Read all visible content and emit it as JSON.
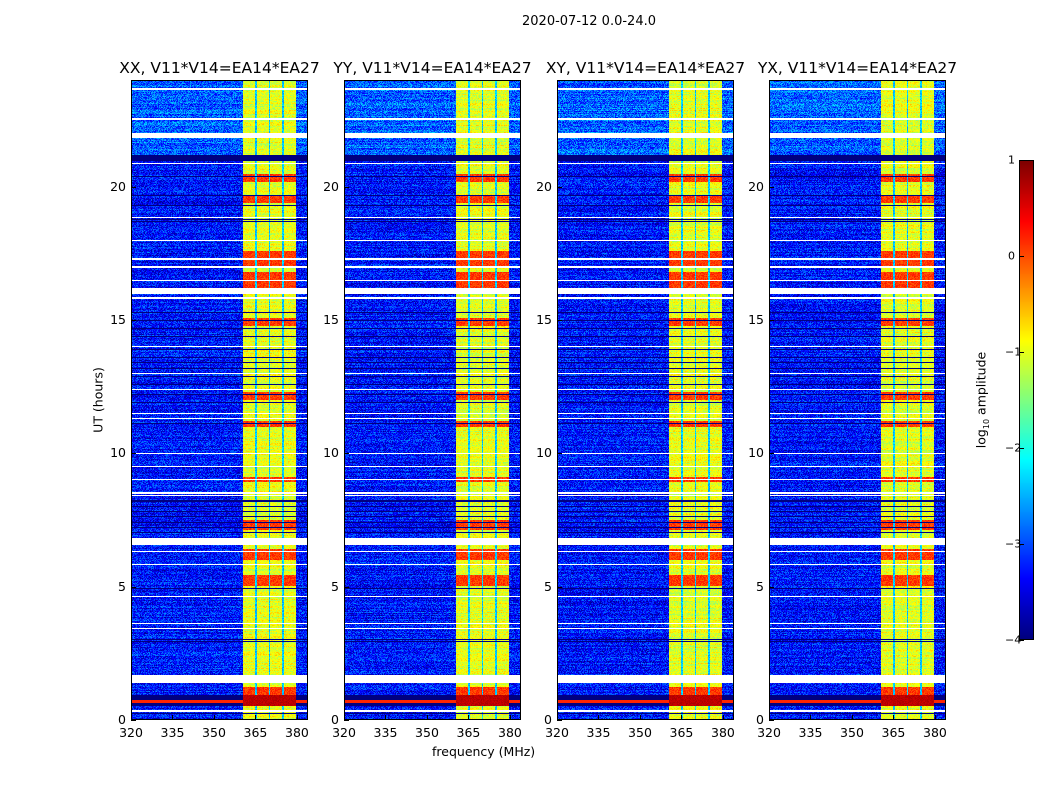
{
  "chart_data": {
    "type": "heatmap",
    "suptitle": "2020-07-12 0.0-24.0",
    "panels": [
      {
        "title": "XX, V11*V14=EA14*EA27",
        "seed": 11
      },
      {
        "title": "YY, V11*V14=EA14*EA27",
        "seed": 23
      },
      {
        "title": "XY, V11*V14=EA14*EA27",
        "seed": 37
      },
      {
        "title": "YX, V11*V14=EA14*EA27",
        "seed": 51
      }
    ],
    "xlabel": "frequency (MHz)",
    "ylabel": "UT (hours)",
    "xlim": [
      320,
      384
    ],
    "ylim": [
      0,
      24
    ],
    "xticks": [
      "320",
      "335",
      "350",
      "365",
      "380"
    ],
    "xtick_values": [
      320,
      335,
      350,
      365,
      380
    ],
    "yticks": [
      "0",
      "5",
      "10",
      "15",
      "20"
    ],
    "ytick_values": [
      0,
      5,
      10,
      15,
      20
    ],
    "colorbar": {
      "label_prefix": "log",
      "label_sub": "10",
      "label_suffix": " amplitude",
      "range": [
        -4,
        1
      ],
      "ticks": [
        "1",
        "0",
        "−1",
        "−2",
        "−3",
        "−4"
      ],
      "tick_values": [
        1,
        0,
        -1,
        -2,
        -3,
        -4
      ],
      "colormap": "jet"
    },
    "background_log_amp": -3.3,
    "rfi_band_mhz": [
      360.5,
      380.0
    ],
    "rfi_band_log_amp": -1.0,
    "rfi_band_gaps_mhz": [
      365.2,
      370.3,
      375.3
    ],
    "flagged_ut_ranges": [
      [
        21.86,
        22.05
      ],
      [
        15.98,
        16.2
      ],
      [
        6.54,
        6.8
      ],
      [
        1.35,
        1.65
      ],
      [
        15.8,
        15.87
      ]
    ],
    "flagged_ut_lines": [
      23.7,
      22.57,
      20.9,
      18.87,
      18.0,
      17.3,
      17.0,
      16.5,
      14.0,
      13.0,
      12.4,
      11.5,
      11.3,
      10.0,
      9.5,
      9.0,
      8.5,
      8.4,
      6.3,
      5.8,
      4.6,
      3.6,
      3.4,
      0.3
    ],
    "blank_ut_ranges": [
      [
        21.0,
        21.2
      ],
      [
        0.5,
        0.9
      ]
    ],
    "blank_ut_lines": [
      20.4,
      19.7,
      19.3,
      18.8,
      18.7,
      15.3,
      15.0,
      14.7,
      14.4,
      13.9,
      13.6,
      13.4,
      13.2,
      12.9,
      12.6,
      12.2,
      11.9,
      11.1,
      8.2,
      8.0,
      7.8,
      7.6,
      7.4,
      7.2,
      7.0,
      4.9,
      3.0,
      2.9,
      0.2
    ],
    "hot_ut_ranges": [
      [
        20.2,
        20.5
      ],
      [
        19.4,
        19.7
      ],
      [
        17.0,
        17.6
      ],
      [
        16.2,
        16.8
      ],
      [
        14.8,
        15.1
      ],
      [
        12.0,
        12.3
      ],
      [
        11.0,
        11.2
      ],
      [
        8.9,
        9.1
      ],
      [
        7.1,
        7.5
      ],
      [
        6.0,
        6.4
      ],
      [
        5.0,
        5.4
      ],
      [
        0.9,
        1.2
      ],
      [
        0.55,
        0.85
      ]
    ],
    "grid": false
  }
}
